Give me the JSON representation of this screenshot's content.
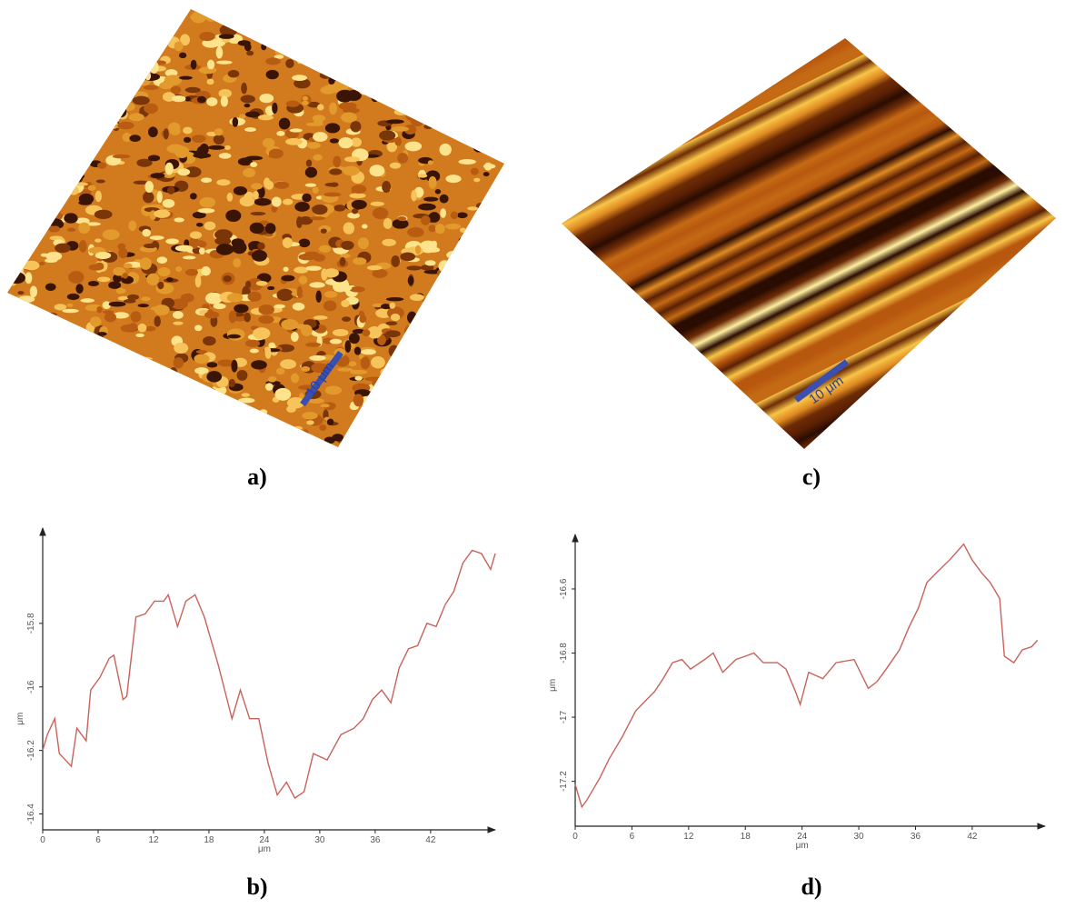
{
  "images": [
    {
      "label": "a)",
      "scale_bar": "10 μm"
    },
    {
      "label": "c)",
      "scale_bar": "10 μm"
    }
  ],
  "chart_data": [
    {
      "type": "line",
      "label": "b)",
      "xlabel": "μm",
      "ylabel": "μm",
      "color": "#c8625a",
      "xlim": [
        0,
        49
      ],
      "xticks": [
        0,
        6,
        12,
        18,
        24,
        30,
        36,
        42
      ],
      "ylim": [
        -16.45,
        -15.5
      ],
      "yticks": [
        -16.4,
        -16.2,
        -16,
        -15.8
      ],
      "x": [
        0,
        0.5,
        1.3,
        1.8,
        3.1,
        3.7,
        4.7,
        5.2,
        6.2,
        7.2,
        7.7,
        8.7,
        9.1,
        10.1,
        11.1,
        12.1,
        13.1,
        13.6,
        14.6,
        15.5,
        16.5,
        17.5,
        19.0,
        20.5,
        21.4,
        22.4,
        23.4,
        24.4,
        25.4,
        26.4,
        27.3,
        28.3,
        29.3,
        30.8,
        32.3,
        33.7,
        34.7,
        35.7,
        36.7,
        37.7,
        38.6,
        39.6,
        40.6,
        41.6,
        42.6,
        43.6,
        44.5,
        45.5,
        46.5,
        47.5,
        48.5,
        49.0
      ],
      "values": [
        -16.2,
        -16.15,
        -16.1,
        -16.21,
        -16.25,
        -16.13,
        -16.17,
        -16.01,
        -15.97,
        -15.91,
        -15.9,
        -16.04,
        -16.03,
        -15.78,
        -15.77,
        -15.73,
        -15.73,
        -15.71,
        -15.81,
        -15.73,
        -15.71,
        -15.78,
        -15.93,
        -16.1,
        -16.01,
        -16.1,
        -16.1,
        -16.24,
        -16.34,
        -16.3,
        -16.35,
        -16.33,
        -16.21,
        -16.23,
        -16.15,
        -16.13,
        -16.1,
        -16.04,
        -16.01,
        -16.05,
        -15.94,
        -15.88,
        -15.87,
        -15.8,
        -15.81,
        -15.74,
        -15.7,
        -15.61,
        -15.57,
        -15.58,
        -15.63,
        -15.58
      ]
    },
    {
      "type": "line",
      "label": "d)",
      "xlabel": "μm",
      "ylabel": "μm",
      "color": "#c8625a",
      "xlim": [
        0,
        49.7
      ],
      "xticks": [
        0,
        6,
        12,
        18,
        24,
        30,
        36,
        42
      ],
      "ylim": [
        -17.34,
        -16.43
      ],
      "yticks": [
        -17.2,
        -17,
        -16.8,
        -16.6
      ],
      "x": [
        0,
        0.7,
        1.2,
        2.6,
        3.6,
        5.0,
        6.4,
        7.4,
        8.4,
        9.3,
        10.3,
        11.3,
        12.2,
        13.7,
        14.6,
        15.6,
        17.0,
        18.0,
        18.9,
        19.9,
        21.4,
        22.3,
        23.3,
        23.8,
        24.7,
        26.2,
        27.6,
        29.5,
        31.0,
        31.9,
        32.9,
        34.3,
        35.3,
        36.3,
        37.2,
        38.2,
        39.6,
        41.1,
        42.0,
        43.0,
        43.9,
        44.9,
        45.4,
        46.4,
        47.3,
        48.3,
        48.9
      ],
      "values": [
        -17.21,
        -17.28,
        -17.26,
        -17.19,
        -17.13,
        -17.06,
        -16.98,
        -16.95,
        -16.92,
        -16.88,
        -16.83,
        -16.82,
        -16.85,
        -16.82,
        -16.8,
        -16.86,
        -16.82,
        -16.81,
        -16.8,
        -16.83,
        -16.83,
        -16.85,
        -16.92,
        -16.96,
        -16.86,
        -16.88,
        -16.83,
        -16.82,
        -16.91,
        -16.89,
        -16.85,
        -16.79,
        -16.72,
        -16.66,
        -16.58,
        -16.55,
        -16.51,
        -16.46,
        -16.51,
        -16.55,
        -16.58,
        -16.63,
        -16.81,
        -16.83,
        -16.79,
        -16.78,
        -16.76
      ]
    }
  ]
}
